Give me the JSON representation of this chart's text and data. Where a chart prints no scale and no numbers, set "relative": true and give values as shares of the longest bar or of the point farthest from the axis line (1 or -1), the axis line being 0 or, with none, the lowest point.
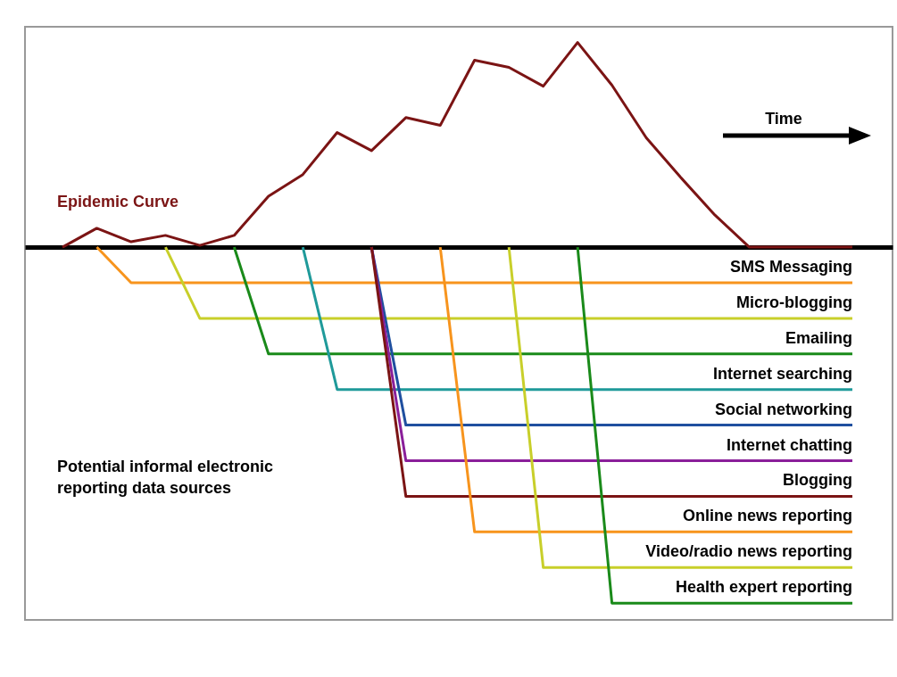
{
  "chart_data": {
    "type": "line",
    "relative": true,
    "legend": false,
    "categories": [
      null,
      null,
      null,
      null,
      null,
      null,
      null,
      null,
      null,
      null,
      null,
      null,
      null,
      null,
      null,
      null,
      null,
      null,
      null,
      null,
      null,
      null,
      null,
      null
    ],
    "series": [
      {
        "name": "Epidemic Curve",
        "color": "#7b1414",
        "values": [
          0,
          0.053,
          0.015,
          0.033,
          0.005,
          0.033,
          0.143,
          0.204,
          0.322,
          0.271,
          0.364,
          0.342,
          0.525,
          0.505,
          0.452,
          0.575,
          0.455,
          0.307,
          0.196,
          0.09,
          0,
          0,
          0,
          0
        ]
      },
      {
        "name": "SMS Messaging",
        "color": "#f7941d",
        "values": [
          null,
          0,
          -0.1,
          -0.1,
          -0.1,
          -0.1,
          -0.1,
          -0.1,
          -0.1,
          -0.1,
          -0.1,
          -0.1,
          -0.1,
          -0.1,
          -0.1,
          -0.1,
          -0.1,
          -0.1,
          -0.1,
          -0.1,
          -0.1,
          -0.1,
          -0.1,
          -0.1
        ]
      },
      {
        "name": "Micro-blogging",
        "color": "#c8cf2a",
        "values": [
          null,
          null,
          null,
          0,
          -0.2,
          -0.2,
          -0.2,
          -0.2,
          -0.2,
          -0.2,
          -0.2,
          -0.2,
          -0.2,
          -0.2,
          -0.2,
          -0.2,
          -0.2,
          -0.2,
          -0.2,
          -0.2,
          -0.2,
          -0.2,
          -0.2,
          -0.2
        ]
      },
      {
        "name": "Emailing",
        "color": "#1a8a1a",
        "values": [
          null,
          null,
          null,
          null,
          null,
          0,
          -0.3,
          -0.3,
          -0.3,
          -0.3,
          -0.3,
          -0.3,
          -0.3,
          -0.3,
          -0.3,
          -0.3,
          -0.3,
          -0.3,
          -0.3,
          -0.3,
          -0.3,
          -0.3,
          -0.3,
          -0.3
        ]
      },
      {
        "name": "Internet searching",
        "color": "#1f9a9a",
        "values": [
          null,
          null,
          null,
          null,
          null,
          null,
          null,
          0,
          -0.4,
          -0.4,
          -0.4,
          -0.4,
          -0.4,
          -0.4,
          -0.4,
          -0.4,
          -0.4,
          -0.4,
          -0.4,
          -0.4,
          -0.4,
          -0.4,
          -0.4,
          -0.4
        ]
      },
      {
        "name": "Social networking",
        "color": "#1f4f9f",
        "values": [
          null,
          null,
          null,
          null,
          null,
          null,
          null,
          null,
          null,
          0,
          -0.5,
          -0.5,
          -0.5,
          -0.5,
          -0.5,
          -0.5,
          -0.5,
          -0.5,
          -0.5,
          -0.5,
          -0.5,
          -0.5,
          -0.5,
          -0.5
        ]
      },
      {
        "name": "Internet chatting",
        "color": "#8a1f9a",
        "values": [
          null,
          null,
          null,
          null,
          null,
          null,
          null,
          null,
          null,
          0,
          -0.6,
          -0.6,
          -0.6,
          -0.6,
          -0.6,
          -0.6,
          -0.6,
          -0.6,
          -0.6,
          -0.6,
          -0.6,
          -0.6,
          -0.6,
          -0.6
        ]
      },
      {
        "name": "Blogging",
        "color": "#7b1414",
        "values": [
          null,
          null,
          null,
          null,
          null,
          null,
          null,
          null,
          null,
          0,
          -0.7,
          -0.7,
          -0.7,
          -0.7,
          -0.7,
          -0.7,
          -0.7,
          -0.7,
          -0.7,
          -0.7,
          -0.7,
          -0.7,
          -0.7,
          -0.7
        ]
      },
      {
        "name": "Online news reporting",
        "color": "#f7941d",
        "values": [
          null,
          null,
          null,
          null,
          null,
          null,
          null,
          null,
          null,
          null,
          null,
          0,
          -0.8,
          -0.8,
          -0.8,
          -0.8,
          -0.8,
          -0.8,
          -0.8,
          -0.8,
          -0.8,
          -0.8,
          -0.8,
          -0.8
        ]
      },
      {
        "name": "Video/radio news reporting",
        "color": "#c8cf2a",
        "values": [
          null,
          null,
          null,
          null,
          null,
          null,
          null,
          null,
          null,
          null,
          null,
          null,
          null,
          0,
          -0.9,
          -0.9,
          -0.9,
          -0.9,
          -0.9,
          -0.9,
          -0.9,
          -0.9,
          -0.9,
          -0.9
        ]
      },
      {
        "name": "Health expert reporting",
        "color": "#1a8a1a",
        "values": [
          null,
          null,
          null,
          null,
          null,
          null,
          null,
          null,
          null,
          null,
          null,
          null,
          null,
          null,
          null,
          0,
          -1,
          -1,
          -1,
          -1,
          -1,
          -1,
          -1,
          -1
        ]
      }
    ],
    "annotations": [
      "Time",
      "Potential informal electronic reporting data sources"
    ]
  }
}
